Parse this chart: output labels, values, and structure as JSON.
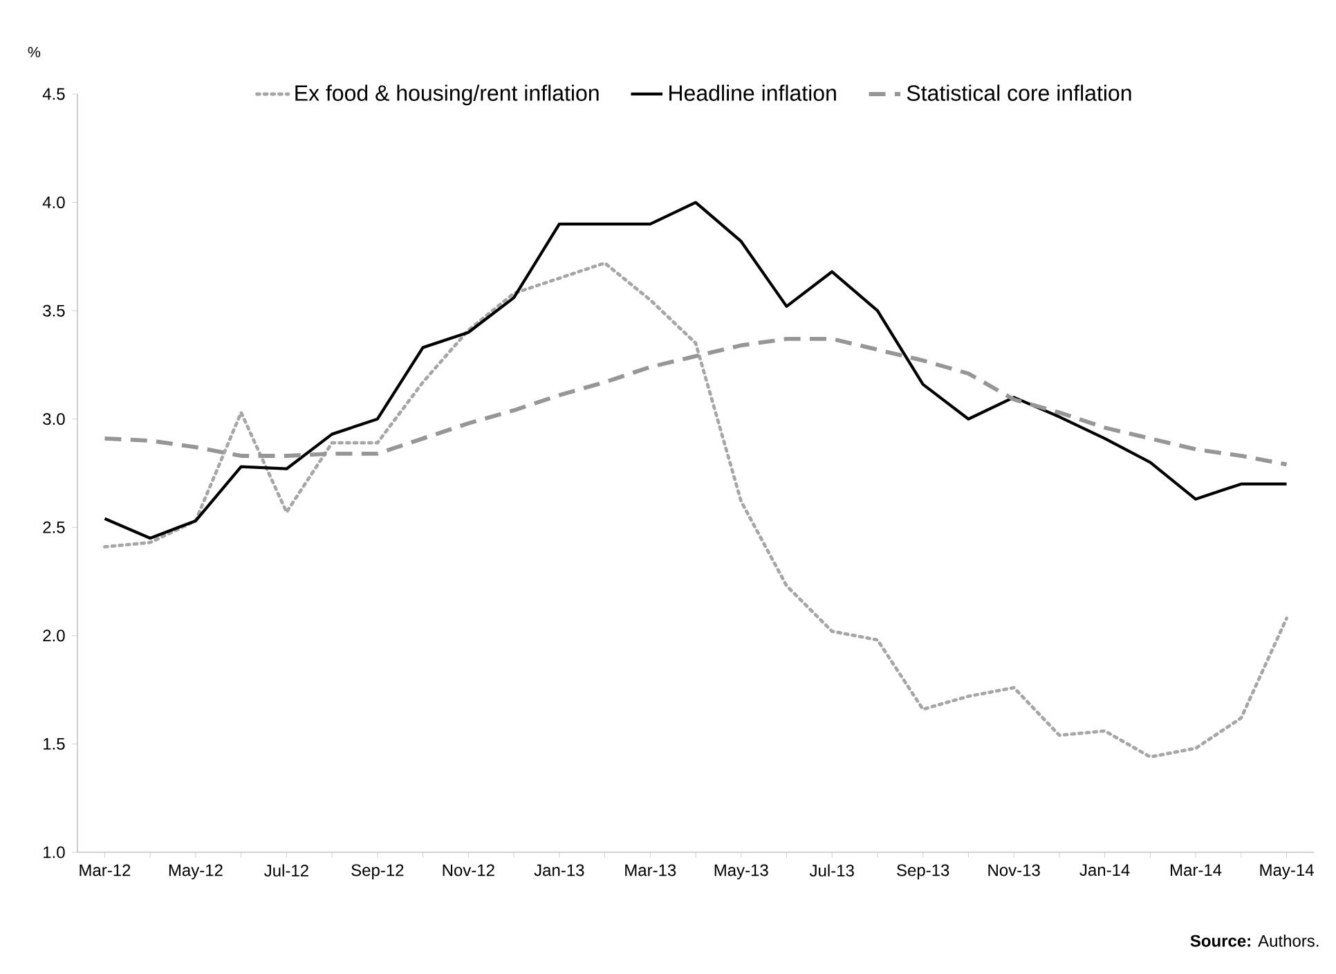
{
  "chart_data": {
    "type": "line",
    "ylabel": "%",
    "categories": [
      "Mar-12",
      null,
      "May-12",
      null,
      "Jul-12",
      null,
      "Sep-12",
      null,
      "Nov-12",
      null,
      "Jan-13",
      null,
      "Mar-13",
      null,
      "May-13",
      null,
      "Jul-13",
      null,
      "Sep-13",
      null,
      "Nov-13",
      null,
      "Jan-14",
      null,
      "Mar-14",
      null,
      "May-14"
    ],
    "series": [
      {
        "name": "Ex food & housing/rent inflation",
        "color": "#a6a6a6",
        "line_style": "dotted",
        "values": [
          2.41,
          2.43,
          2.53,
          3.03,
          2.57,
          2.89,
          2.89,
          3.17,
          3.41,
          3.58,
          3.65,
          3.72,
          3.55,
          3.35,
          2.62,
          2.23,
          2.02,
          1.98,
          1.66,
          1.72,
          1.76,
          1.54,
          1.56,
          1.44,
          1.48,
          1.62,
          2.08
        ]
      },
      {
        "name": "Headline inflation",
        "color": "#000000",
        "line_style": "solid",
        "values": [
          2.54,
          2.45,
          2.53,
          2.78,
          2.77,
          2.93,
          3.0,
          3.33,
          3.4,
          3.56,
          3.9,
          3.9,
          3.9,
          4.0,
          3.82,
          3.52,
          3.68,
          3.5,
          3.16,
          3.0,
          3.1,
          3.01,
          2.91,
          2.8,
          2.63,
          2.7,
          2.7
        ]
      },
      {
        "name": "Statistical core inflation",
        "color": "#969696",
        "line_style": "dashed",
        "values": [
          2.91,
          2.9,
          2.87,
          2.83,
          2.83,
          2.84,
          2.84,
          2.91,
          2.98,
          3.04,
          3.11,
          3.17,
          3.24,
          3.29,
          3.34,
          3.37,
          3.37,
          3.32,
          3.27,
          3.21,
          3.09,
          3.03,
          2.96,
          2.91,
          2.86,
          2.83,
          2.79
        ]
      }
    ],
    "ylim": [
      1.0,
      4.5
    ],
    "yticks": [
      {
        "value": 1.0,
        "label": "1.0"
      },
      {
        "value": 1.5,
        "label": "1.5"
      },
      {
        "value": 2.0,
        "label": "2.0"
      },
      {
        "value": 2.5,
        "label": "2.5"
      },
      {
        "value": 3.0,
        "label": "3.0"
      },
      {
        "value": 3.5,
        "label": "3.5"
      },
      {
        "value": 4.0,
        "label": "4.0"
      },
      {
        "value": 4.5,
        "label": "4.5"
      }
    ],
    "legend": "top",
    "marker": "none",
    "annotations": [
      "**Source:** Authors."
    ]
  }
}
